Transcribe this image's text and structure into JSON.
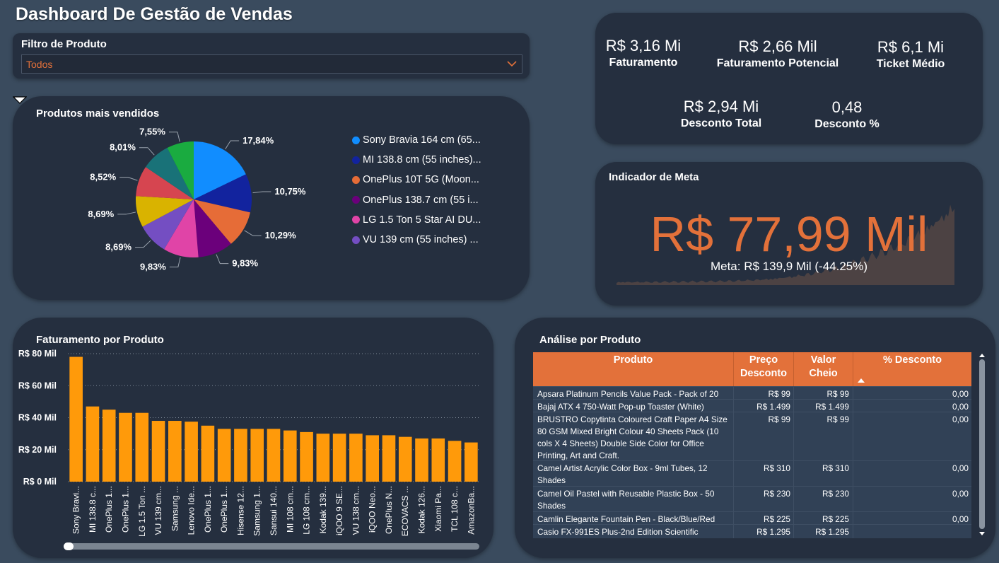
{
  "title": "Dashboard De Gestão de Vendas",
  "filter": {
    "label": "Filtro de Produto",
    "value": "Todos"
  },
  "pie": {
    "title": "Produtos mais vendidos",
    "legend": [
      {
        "label": "Sony Bravia 164 cm (65...",
        "color": "#118dff"
      },
      {
        "label": "MI 138.8 cm (55 inches)...",
        "color": "#12239e"
      },
      {
        "label": "OnePlus 10T 5G (Moon...",
        "color": "#e66c37"
      },
      {
        "label": "OnePlus 138.7 cm (55 i...",
        "color": "#6b007b"
      },
      {
        "label": "LG 1.5 Ton 5 Star AI DU...",
        "color": "#e044a7"
      },
      {
        "label": "VU 139 cm (55 inches) ...",
        "color": "#744ec2"
      }
    ]
  },
  "chart_data": [
    {
      "type": "pie",
      "title": "Produtos mais vendidos",
      "labels": [
        "17,84%",
        "10,75%",
        "10,29%",
        "9,83%",
        "9,83%",
        "8,69%",
        "8,69%",
        "8,52%",
        "8,01%",
        "7,55%"
      ],
      "values": [
        17.84,
        10.75,
        10.29,
        9.83,
        9.83,
        8.69,
        8.69,
        8.52,
        8.01,
        7.55
      ],
      "colors": [
        "#118dff",
        "#12239e",
        "#e66c37",
        "#6b007b",
        "#e044a7",
        "#744ec2",
        "#d9b300",
        "#d64550",
        "#197278",
        "#1aab40"
      ]
    },
    {
      "type": "bar",
      "title": "Faturamento por Produto",
      "categories": [
        "Sony Bravi...",
        "MI 138.8 c...",
        "OnePlus 1...",
        "OnePlus 1...",
        "LG 1.5 Ton ...",
        "VU 139 cm...",
        "Samsung ...",
        "Lenovo Ide...",
        "OnePlus 1...",
        "OnePlus 1...",
        "Hisense 12...",
        "Samsung 1...",
        "Sansui 140...",
        "MI 108 cm...",
        "LG 108 cm...",
        "Kodak 139...",
        "iQOO 9 SE...",
        "VU 138 cm...",
        "iQOO Neo...",
        "OnePlus N...",
        "ECOVACS ...",
        "Kodak 126...",
        "Xiaomi Pa...",
        "TCL 108 c...",
        "AmazonBa..."
      ],
      "values": [
        78,
        47,
        45,
        43,
        43,
        38,
        38,
        37.5,
        35,
        33,
        33,
        33,
        33,
        32,
        31,
        30,
        30,
        30,
        29,
        29,
        28,
        27,
        27,
        25.5,
        24.5
      ],
      "ylim": [
        0,
        80
      ],
      "yticks": [
        "R$ 0 Mil",
        "R$ 20 Mil",
        "R$ 40 Mil",
        "R$ 60 Mil",
        "R$ 80 Mil"
      ],
      "color": "#ff9a0a",
      "grid": true
    }
  ],
  "kpis": [
    {
      "value": "R$ 3,16 Mi",
      "label": "Faturamento"
    },
    {
      "value": "R$ 2,66 Mil",
      "label": "Faturamento Potencial"
    },
    {
      "value": "R$ 6,1 Mi",
      "label": "Ticket Médio"
    },
    {
      "value": "R$ 2,94 Mi",
      "label": "Desconto Total"
    },
    {
      "value": "0,48",
      "label": "Desconto %"
    }
  ],
  "meta": {
    "title": "Indicador de Meta",
    "value": "R$ 77,99 Mil",
    "goal": "Meta: R$ 139,9 Mil (-44.25%)"
  },
  "bar": {
    "title": "Faturamento por Produto"
  },
  "table": {
    "title": "Análise por Produto",
    "headers": [
      "Produto",
      "Preço Desconto",
      "Valor Cheio",
      "% Desconto"
    ],
    "rows": [
      {
        "produto": "Apsara Platinum Pencils Value Pack - Pack of 20",
        "preco": "R$ 99",
        "valor": "R$ 99",
        "desconto": "0,00"
      },
      {
        "produto": "Bajaj ATX 4 750-Watt Pop-up Toaster (White)",
        "preco": "R$ 1.499",
        "valor": "R$ 1.499",
        "desconto": "0,00"
      },
      {
        "produto": "BRUSTRO Copytinta Coloured Craft Paper A4 Size 80 GSM Mixed Bright Colour 40 Sheets Pack (10 cols X 4 Sheets) Double Side Color for Office Printing, Art and Craft.",
        "preco": "R$ 99",
        "valor": "R$ 99",
        "desconto": "0,00"
      },
      {
        "produto": "Camel Artist Acrylic Color Box - 9ml Tubes, 12 Shades",
        "preco": "R$ 310",
        "valor": "R$ 310",
        "desconto": "0,00"
      },
      {
        "produto": "Camel Oil Pastel with Reusable Plastic Box - 50 Shades",
        "preco": "R$ 230",
        "valor": "R$ 230",
        "desconto": "0,00"
      },
      {
        "produto": "Camlin Elegante Fountain Pen - Black/Blue/Red",
        "preco": "R$ 225",
        "valor": "R$ 225",
        "desconto": "0,00"
      },
      {
        "produto": "Casio FX-991ES Plus-2nd Edition Scientific",
        "preco": "R$ 1.295",
        "valor": "R$ 1.295",
        "desconto": ""
      }
    ]
  }
}
